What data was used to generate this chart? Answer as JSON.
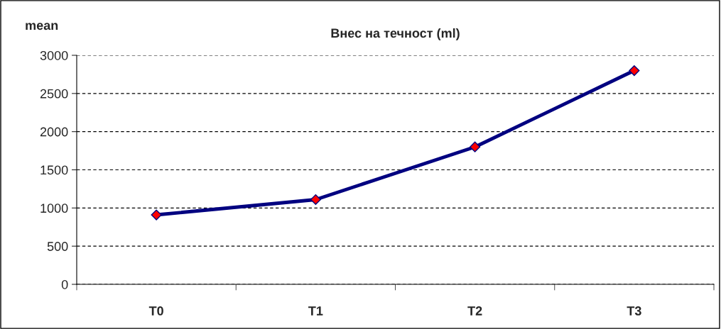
{
  "chart_data": {
    "type": "line",
    "title": "Внес на течност (ml)",
    "ylabel": "mean",
    "categories": [
      "T0",
      "T1",
      "T2",
      "T3"
    ],
    "series": [
      {
        "color": "#000080",
        "values": [
          910,
          1110,
          1800,
          2800
        ]
      }
    ],
    "marker": "diamond",
    "line_style": "solid",
    "ylim": [
      0,
      3000
    ],
    "yticks": [
      0,
      500,
      1000,
      1500,
      2000,
      2500,
      3000
    ],
    "grid": "y"
  }
}
